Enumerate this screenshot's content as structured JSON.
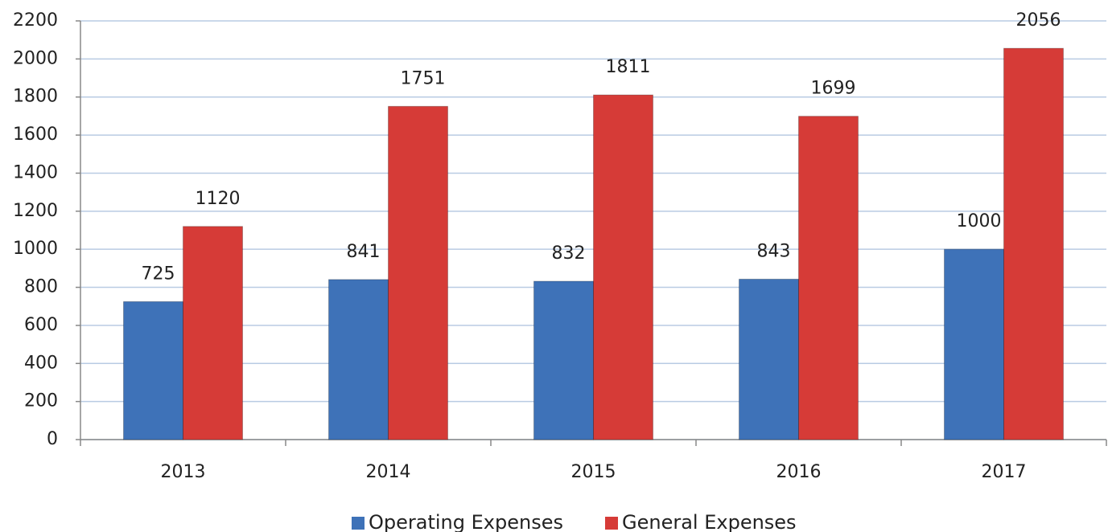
{
  "chart_data": {
    "type": "bar",
    "categories": [
      "2013",
      "2014",
      "2015",
      "2016",
      "2017"
    ],
    "series": [
      {
        "name": "Operating Expenses",
        "color": "#3e72b8",
        "values": [
          725,
          841,
          832,
          843,
          1000
        ]
      },
      {
        "name": "General Expenses",
        "color": "#d63b37",
        "values": [
          1120,
          1751,
          1811,
          1699,
          2056
        ]
      }
    ],
    "ylim": [
      0,
      2200
    ],
    "yticks": [
      0,
      200,
      400,
      600,
      800,
      1000,
      1200,
      1400,
      1600,
      1800,
      2000,
      2200
    ],
    "grid": true,
    "legend": "bottom"
  }
}
